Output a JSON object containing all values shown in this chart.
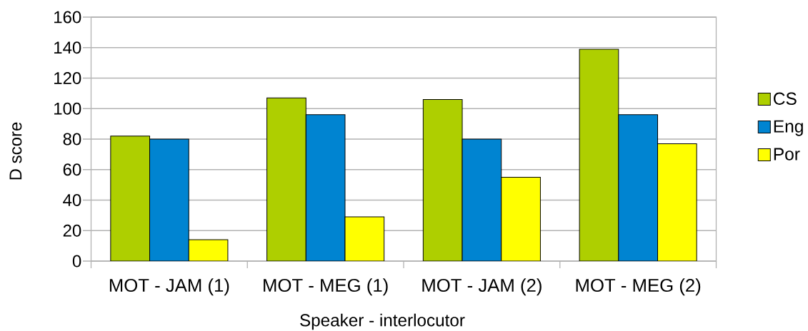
{
  "chart_data": {
    "type": "bar",
    "xlabel": "Speaker - interlocutor",
    "ylabel": "D score",
    "categories": [
      "MOT - JAM (1)",
      "MOT - MEG (1)",
      "MOT - JAM (2)",
      "MOT - MEG (2)"
    ],
    "series": [
      {
        "name": "CS",
        "color": "#aecf00",
        "values": [
          82,
          107,
          106,
          139
        ]
      },
      {
        "name": "Eng",
        "color": "#0084d1",
        "values": [
          80,
          96,
          80,
          96
        ]
      },
      {
        "name": "Por",
        "color": "#ffff00",
        "values": [
          14,
          29,
          55,
          77
        ]
      }
    ],
    "ylim": [
      0,
      160
    ],
    "yticks": [
      0,
      20,
      40,
      60,
      80,
      100,
      120,
      140,
      160
    ],
    "grid": "y",
    "legend": "right"
  }
}
